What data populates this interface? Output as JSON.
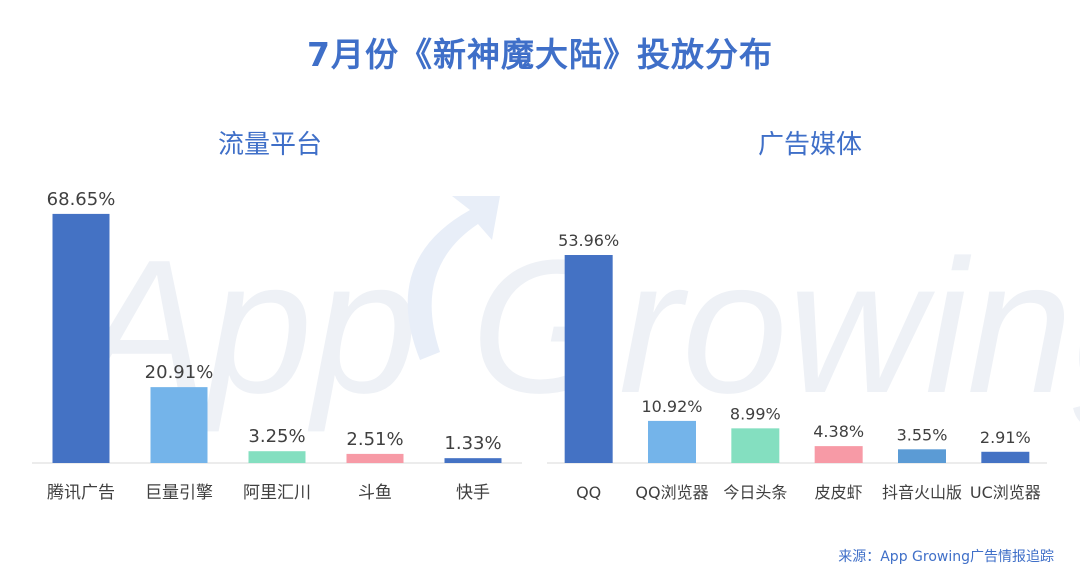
{
  "title": "7月份《新神魔大陆》投放分布",
  "source": "来源：App Growing广告情报追踪",
  "watermark": "App Growing",
  "chart_data": [
    {
      "type": "bar",
      "title": "流量平台",
      "categories": [
        "腾讯广告",
        "巨量引擎",
        "阿里汇川",
        "斗鱼",
        "快手"
      ],
      "values": [
        68.65,
        20.91,
        3.25,
        2.51,
        1.33
      ],
      "value_labels": [
        "68.65%",
        "20.91%",
        "3.25%",
        "2.51%",
        "1.33%"
      ],
      "colors": [
        "#4472c4",
        "#74b4ea",
        "#84dfc0",
        "#f79aa6",
        "#4472c4"
      ],
      "ylim": [
        0,
        70
      ],
      "grid": false
    },
    {
      "type": "bar",
      "title": "广告媒体",
      "categories": [
        "QQ",
        "QQ浏览器",
        "今日头条",
        "皮皮虾",
        "抖音火山版",
        "UC浏览器"
      ],
      "values": [
        53.96,
        10.92,
        8.99,
        4.38,
        3.55,
        2.91
      ],
      "value_labels": [
        "53.96%",
        "10.92%",
        "8.99%",
        "4.38%",
        "3.55%",
        "2.91%"
      ],
      "colors": [
        "#4472c4",
        "#74b4ea",
        "#84dfc0",
        "#f79aa6",
        "#5b9bd5",
        "#4472c4"
      ],
      "ylim": [
        0,
        55
      ],
      "grid": false
    }
  ]
}
